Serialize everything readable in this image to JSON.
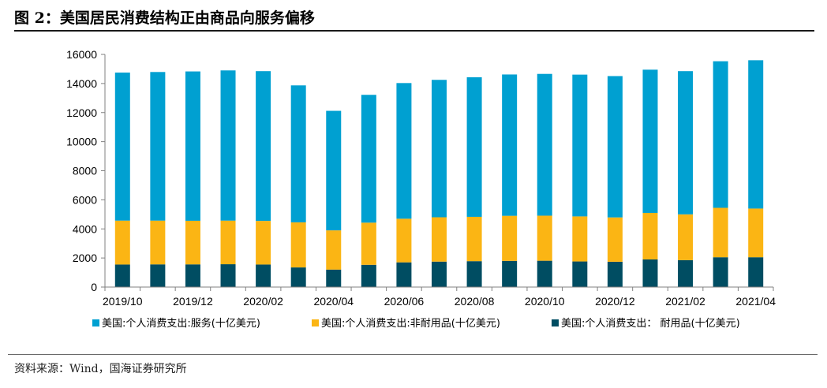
{
  "page": {
    "title": "图 2：美国居民消费结构正由商品向服务偏移",
    "source": "资料来源：Wind，国海证券研究所"
  },
  "colors": {
    "services": "#00A0D1",
    "nondurable": "#FBB514",
    "durable": "#004D62",
    "axis": "#808080"
  },
  "chart_data": {
    "type": "bar",
    "stacked": true,
    "x": [
      "2019/10",
      "2019/11",
      "2019/12",
      "2020/01",
      "2020/02",
      "2020/03",
      "2020/04",
      "2020/05",
      "2020/06",
      "2020/07",
      "2020/08",
      "2020/09",
      "2020/10",
      "2020/11",
      "2020/12",
      "2021/01",
      "2021/02",
      "2021/03",
      "2021/04"
    ],
    "x_tick_labels": [
      "2019/10",
      "2019/12",
      "2020/02",
      "2020/04",
      "2020/06",
      "2020/08",
      "2020/10",
      "2020/12",
      "2021/02",
      "2021/04"
    ],
    "y_ticks": [
      0,
      2000,
      4000,
      6000,
      8000,
      10000,
      12000,
      14000,
      16000
    ],
    "ylim": [
      0,
      16000
    ],
    "grid": false,
    "legend_position": "bottom",
    "series": [
      {
        "name": "美国:个人消费支出:服务(十亿美元)",
        "values": [
          10180,
          10220,
          10270,
          10330,
          10300,
          9420,
          8220,
          8790,
          9330,
          9450,
          9600,
          9720,
          9750,
          9750,
          9720,
          9850,
          9850,
          10080,
          10200
        ]
      },
      {
        "name": "美国:个人消费支出:非耐用品(十亿美元)",
        "values": [
          3020,
          3010,
          3000,
          3000,
          3000,
          3100,
          2700,
          2900,
          3000,
          3050,
          3050,
          3100,
          3100,
          3100,
          3050,
          3200,
          3150,
          3400,
          3350
        ]
      },
      {
        "name": "美国:个人消费支出： 耐用品(十亿美元)",
        "values": [
          1550,
          1560,
          1560,
          1570,
          1550,
          1350,
          1200,
          1530,
          1700,
          1750,
          1780,
          1800,
          1810,
          1760,
          1740,
          1900,
          1850,
          2050,
          2050
        ]
      }
    ]
  }
}
